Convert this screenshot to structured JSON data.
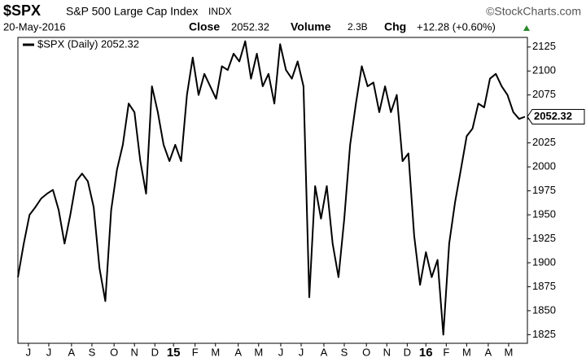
{
  "header": {
    "symbol": "$SPX",
    "name": "S&P 500 Large Cap Index",
    "exchange": "INDX",
    "brand": "©StockCharts.com",
    "date": "20-May-2016",
    "close_label": "Close",
    "close": "2052.32",
    "volume_label": "Volume",
    "volume": "2.3B",
    "chg_label": "Chg",
    "chg": "+12.28 (+0.60%)"
  },
  "chart_data": {
    "type": "line",
    "series": [
      {
        "name": "$SPX (Daily) 2052.32",
        "color": "#000000",
        "values": [
          1885,
          1920,
          1950,
          1958,
          1967,
          1972,
          1976,
          1955,
          1920,
          1950,
          1985,
          1993,
          1985,
          1958,
          1894,
          1860,
          1955,
          1997,
          2023,
          2066,
          2057,
          2006,
          1972,
          2084,
          2057,
          2023,
          2006,
          2023,
          2006,
          2075,
          2114,
          2075,
          2097,
          2084,
          2071,
          2105,
          2101,
          2118,
          2110,
          2131,
          2092,
          2118,
          2084,
          2097,
          2066,
          2128,
          2101,
          2092,
          2110,
          2084,
          1864,
          1980,
          1946,
          1980,
          1920,
          1885,
          1946,
          2023,
          2066,
          2105,
          2084,
          2088,
          2057,
          2084,
          2057,
          2075,
          2006,
          2014,
          1928,
          1877,
          1911,
          1885,
          1903,
          1825,
          1920,
          1963,
          1997,
          2032,
          2040,
          2066,
          2062,
          2092,
          2097,
          2084,
          2075,
          2057,
          2050,
          2052.32
        ]
      }
    ],
    "ylim": [
      1816,
      2135
    ],
    "yticks": [
      1825,
      1850,
      1875,
      1900,
      1925,
      1950,
      1975,
      2000,
      2025,
      2050,
      2075,
      2100,
      2125
    ],
    "xlim": [
      0,
      87
    ],
    "xticks": [
      {
        "value": 1.8,
        "label": "J"
      },
      {
        "value": 5.3,
        "label": "J"
      },
      {
        "value": 9.2,
        "label": "A"
      },
      {
        "value": 12.7,
        "label": "S"
      },
      {
        "value": 16.5,
        "label": "O"
      },
      {
        "value": 20,
        "label": "N"
      },
      {
        "value": 23.5,
        "label": "D"
      },
      {
        "value": 26.7,
        "label": "15"
      },
      {
        "value": 30.4,
        "label": "F"
      },
      {
        "value": 33.9,
        "label": "M"
      },
      {
        "value": 37.8,
        "label": "A"
      },
      {
        "value": 41.3,
        "label": "M"
      },
      {
        "value": 45.1,
        "label": "J"
      },
      {
        "value": 48.6,
        "label": "J"
      },
      {
        "value": 52.5,
        "label": "A"
      },
      {
        "value": 56,
        "label": "S"
      },
      {
        "value": 59.8,
        "label": "O"
      },
      {
        "value": 63.3,
        "label": "N"
      },
      {
        "value": 66.8,
        "label": "D"
      },
      {
        "value": 70,
        "label": "16"
      },
      {
        "value": 73.5,
        "label": "F"
      },
      {
        "value": 77,
        "label": "M"
      },
      {
        "value": 80.7,
        "label": "A"
      },
      {
        "value": 84.2,
        "label": "M"
      }
    ]
  }
}
